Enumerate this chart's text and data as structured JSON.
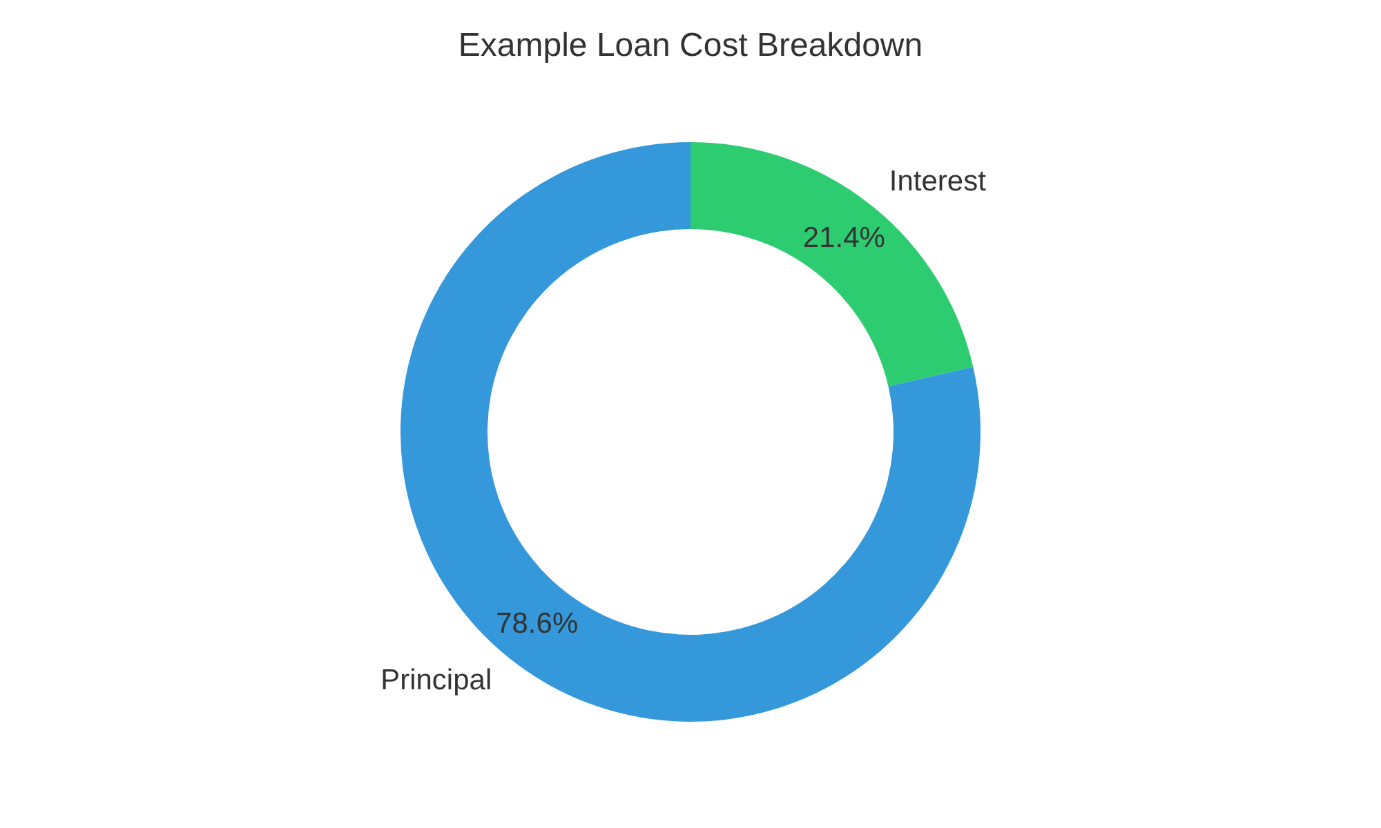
{
  "chart_data": {
    "type": "donut",
    "title": "Example Loan Cost Breakdown",
    "categories": [
      "Interest",
      "Principal"
    ],
    "values": [
      21.4,
      78.6
    ],
    "colors": [
      "#2ecc71",
      "#3498db"
    ],
    "value_labels": [
      "21.4%",
      "78.6%"
    ],
    "legend": false
  }
}
